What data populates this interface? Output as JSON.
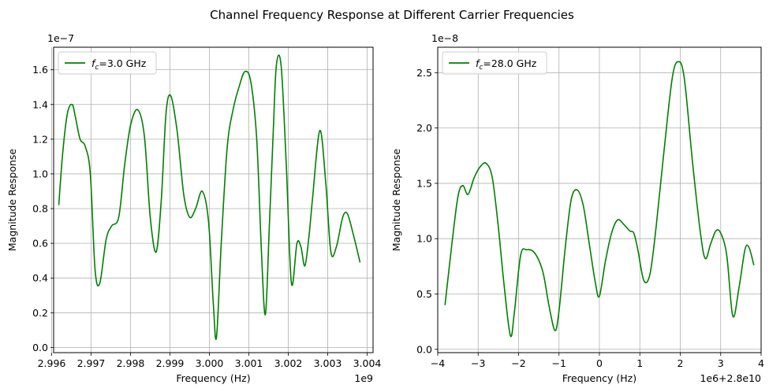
{
  "figure": {
    "suptitle": "Channel Frequency Response at Different Carrier Frequencies"
  },
  "chart_data": [
    {
      "type": "line",
      "xlabel": "Frequency (Hz)",
      "ylabel": "Magnitude Response",
      "x_offset_text": "1e9",
      "y_offset_text": "1e−7",
      "xlim": [
        2.99605,
        3.00415
      ],
      "ylim": [
        -0.03,
        1.73
      ],
      "xticks": [
        2.996,
        2.997,
        2.998,
        2.999,
        3.0,
        3.001,
        3.002,
        3.003,
        3.004
      ],
      "xtick_labels": [
        "2.996",
        "2.997",
        "2.998",
        "2.999",
        "3.000",
        "3.001",
        "3.002",
        "3.003",
        "3.004"
      ],
      "yticks": [
        0.0,
        0.2,
        0.4,
        0.6,
        0.8,
        1.0,
        1.2,
        1.4,
        1.6
      ],
      "ytick_labels": [
        "0.0",
        "0.2",
        "0.4",
        "0.6",
        "0.8",
        "1.0",
        "1.2",
        "1.4",
        "1.6"
      ],
      "grid": true,
      "legend_position": "top-left",
      "series": [
        {
          "name": "f_c=3.0 GHz",
          "legend_main": "f",
          "legend_sub": "c",
          "legend_rest": "=3.0 GHz",
          "color": "#008000",
          "x": [
            2.99618,
            2.99628,
            2.9964,
            2.99652,
            2.9966,
            2.99672,
            2.99685,
            2.99698,
            2.9971,
            2.99722,
            2.99738,
            2.99752,
            2.9977,
            2.99785,
            2.998,
            2.99818,
            2.99835,
            2.9985,
            2.99865,
            2.99878,
            2.9989,
            2.99902,
            2.99918,
            2.99935,
            2.9995,
            2.99965,
            2.99982,
            2.99998,
            3.0001,
            3.00018,
            3.0003,
            3.00045,
            3.0006,
            3.00075,
            3.0009,
            3.00105,
            3.0012,
            3.00132,
            3.00142,
            3.00152,
            3.00162,
            3.0017,
            3.00182,
            3.00195,
            3.00208,
            3.00222,
            3.00232,
            3.00242,
            3.00252,
            3.00262,
            3.0028,
            3.00295,
            3.00308,
            3.00322,
            3.00338,
            3.0035,
            3.00365,
            3.00382
          ],
          "y": [
            0.82,
            1.12,
            1.35,
            1.4,
            1.33,
            1.2,
            1.16,
            1.0,
            0.45,
            0.37,
            0.62,
            0.7,
            0.75,
            1.05,
            1.28,
            1.37,
            1.22,
            0.75,
            0.55,
            0.85,
            1.35,
            1.45,
            1.25,
            0.88,
            0.75,
            0.8,
            0.9,
            0.72,
            0.25,
            0.06,
            0.6,
            1.15,
            1.37,
            1.5,
            1.59,
            1.53,
            1.2,
            0.55,
            0.19,
            0.7,
            1.25,
            1.63,
            1.62,
            1.05,
            0.37,
            0.6,
            0.58,
            0.47,
            0.63,
            0.87,
            1.25,
            0.95,
            0.55,
            0.58,
            0.75,
            0.77,
            0.65,
            0.49
          ]
        }
      ]
    },
    {
      "type": "line",
      "xlabel": "Frequency (Hz)",
      "ylabel": "Magnitude Response",
      "x_offset_text": "1e6+2.8e10",
      "y_offset_text": "1e−8",
      "xlim": [
        -4.0,
        4.0
      ],
      "ylim": [
        -0.03,
        2.73
      ],
      "xticks": [
        -4,
        -3,
        -2,
        -1,
        0,
        1,
        2,
        3,
        4
      ],
      "xtick_labels": [
        "−4",
        "−3",
        "−2",
        "−1",
        "0",
        "1",
        "2",
        "3",
        "4"
      ],
      "yticks": [
        0.0,
        0.5,
        1.0,
        1.5,
        2.0,
        2.5
      ],
      "ytick_labels": [
        "0.0",
        "0.5",
        "1.0",
        "1.5",
        "2.0",
        "2.5"
      ],
      "grid": true,
      "legend_position": "top-left",
      "series": [
        {
          "name": "f_c=28.0 GHz",
          "legend_main": "f",
          "legend_sub": "c",
          "legend_rest": "=28.0 GHz",
          "color": "#008000",
          "x": [
            -3.82,
            -3.65,
            -3.5,
            -3.38,
            -3.25,
            -3.1,
            -2.95,
            -2.8,
            -2.65,
            -2.5,
            -2.35,
            -2.2,
            -2.1,
            -1.95,
            -1.8,
            -1.6,
            -1.4,
            -1.25,
            -1.1,
            -1.0,
            -0.85,
            -0.7,
            -0.55,
            -0.4,
            -0.25,
            -0.1,
            0.0,
            0.15,
            0.3,
            0.45,
            0.6,
            0.75,
            0.85,
            0.95,
            1.1,
            1.25,
            1.4,
            1.6,
            1.8,
            1.95,
            2.1,
            2.3,
            2.5,
            2.62,
            2.75,
            2.88,
            3.0,
            3.15,
            3.3,
            3.45,
            3.6,
            3.7,
            3.82
          ],
          "y": [
            0.4,
            0.95,
            1.38,
            1.48,
            1.4,
            1.55,
            1.65,
            1.68,
            1.55,
            1.1,
            0.55,
            0.12,
            0.35,
            0.85,
            0.9,
            0.87,
            0.7,
            0.4,
            0.17,
            0.35,
            0.9,
            1.35,
            1.44,
            1.3,
            0.95,
            0.6,
            0.48,
            0.8,
            1.05,
            1.17,
            1.13,
            1.07,
            1.05,
            0.9,
            0.62,
            0.68,
            1.1,
            1.8,
            2.45,
            2.6,
            2.45,
            1.7,
            1.05,
            0.82,
            0.95,
            1.07,
            1.05,
            0.85,
            0.3,
            0.55,
            0.9,
            0.92,
            0.76
          ]
        }
      ]
    }
  ]
}
